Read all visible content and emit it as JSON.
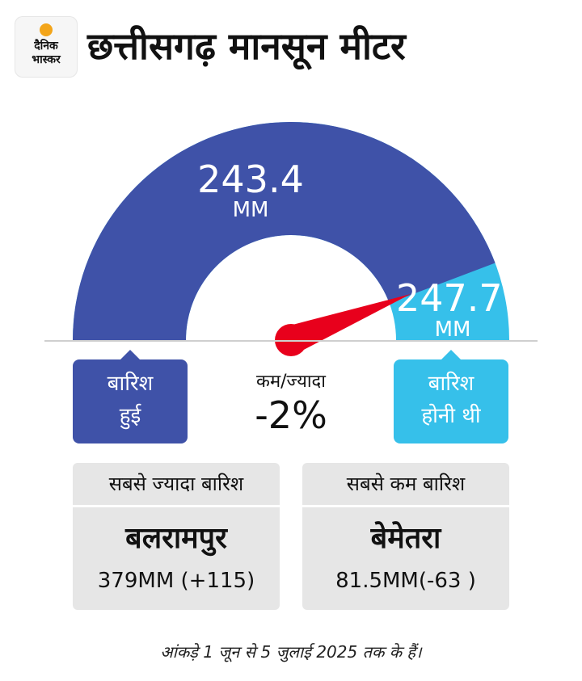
{
  "logo": {
    "line1": "दैनिक",
    "line2": "भास्कर"
  },
  "title": "छत्तीसगढ़ मानसून मीटर",
  "colors": {
    "actual": "#3f52a8",
    "expected": "#36c0ea",
    "needle": "#e8001c",
    "card": "#e6e6e6"
  },
  "gauge": {
    "actual_value": "243.4",
    "actual_unit": "MM",
    "expected_value": "247.7",
    "expected_unit": "MM",
    "fill_fraction": 0.983
  },
  "rain_received_label": [
    "बारिश",
    "हुई"
  ],
  "rain_expected_label": [
    "बारिश",
    "होनी थी"
  ],
  "difference": {
    "label": "कम/ज्यादा",
    "value": "-2%"
  },
  "highest": {
    "heading": "सबसे ज्यादा बारिश",
    "district": "बलरामपुर",
    "value": "379MM (+115)"
  },
  "lowest": {
    "heading": "सबसे कम बारिश",
    "district": "बेमेतरा",
    "value": "81.5MM(-63 )"
  },
  "footnote": "आंकड़े 1 जून से 5 जुलाई 2025 तक के हैं।"
}
